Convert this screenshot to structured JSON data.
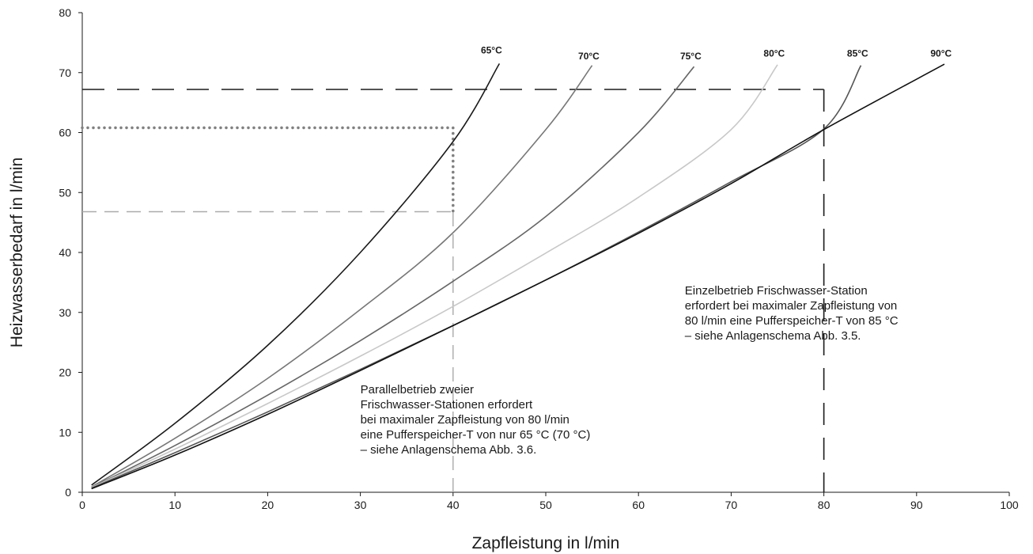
{
  "chart_data": {
    "type": "line",
    "title": "",
    "xlabel": "Zapfleistung in l/min",
    "ylabel": "Heizwasserbedarf in l/min",
    "xlim": [
      0,
      100
    ],
    "ylim": [
      0,
      80
    ],
    "xticks": [
      0,
      10,
      20,
      30,
      40,
      50,
      60,
      70,
      80,
      90,
      100
    ],
    "yticks": [
      0,
      10,
      20,
      30,
      40,
      50,
      60,
      70,
      80
    ],
    "grid": false,
    "legend": "none",
    "series": [
      {
        "name": "65°C",
        "color": "#1a1a1a",
        "points": [
          [
            1,
            1.2
          ],
          [
            10,
            11.5
          ],
          [
            20,
            24.5
          ],
          [
            30,
            40.0
          ],
          [
            40,
            58.5
          ],
          [
            45,
            71.5
          ]
        ]
      },
      {
        "name": "70°C",
        "color": "#777777",
        "points": [
          [
            1,
            0.9
          ],
          [
            10,
            9.0
          ],
          [
            20,
            19.0
          ],
          [
            30,
            30.5
          ],
          [
            40,
            43.3
          ],
          [
            50,
            60.5
          ],
          [
            55,
            71.2
          ]
        ]
      },
      {
        "name": "75°C",
        "color": "#666666",
        "points": [
          [
            1,
            0.8
          ],
          [
            10,
            7.8
          ],
          [
            20,
            16.2
          ],
          [
            30,
            25.3
          ],
          [
            40,
            35.2
          ],
          [
            50,
            46.0
          ],
          [
            60,
            60.0
          ],
          [
            66,
            71.0
          ]
        ]
      },
      {
        "name": "80°C",
        "color": "#c8c8c8",
        "points": [
          [
            1,
            0.8
          ],
          [
            10,
            7.2
          ],
          [
            20,
            14.8
          ],
          [
            30,
            22.7
          ],
          [
            40,
            31.0
          ],
          [
            50,
            39.9
          ],
          [
            60,
            49.2
          ],
          [
            70,
            60.5
          ],
          [
            75,
            71.3
          ]
        ]
      },
      {
        "name": "85°C",
        "color": "#555555",
        "points": [
          [
            1,
            0.7
          ],
          [
            10,
            6.6
          ],
          [
            20,
            13.4
          ],
          [
            30,
            20.5
          ],
          [
            40,
            27.8
          ],
          [
            50,
            35.4
          ],
          [
            60,
            43.4
          ],
          [
            70,
            51.8
          ],
          [
            80,
            60.6
          ],
          [
            84,
            71.2
          ]
        ]
      },
      {
        "name": "90°C",
        "color": "#111111",
        "points": [
          [
            1,
            0.6
          ],
          [
            10,
            6.2
          ],
          [
            20,
            13.0
          ],
          [
            30,
            20.3
          ],
          [
            40,
            27.8
          ],
          [
            50,
            35.4
          ],
          [
            60,
            43.2
          ],
          [
            70,
            51.5
          ],
          [
            80,
            60.5
          ],
          [
            93,
            71.4
          ]
        ]
      }
    ],
    "series_label_positions": {
      "65°C": [
        43,
        73.2
      ],
      "70°C": [
        53.5,
        72.2
      ],
      "75°C": [
        64.5,
        72.2
      ],
      "80°C": [
        73.5,
        72.7
      ],
      "85°C": [
        82.5,
        72.7
      ],
      "90°C": [
        91.5,
        72.7
      ]
    },
    "reference_lines": [
      {
        "style": "dotted",
        "color": "#808080",
        "points": [
          [
            0,
            60.8
          ],
          [
            40,
            60.8
          ],
          [
            40,
            46.8
          ]
        ]
      },
      {
        "style": "dashed-light",
        "color": "#aaaaaa",
        "points": [
          [
            40,
            0
          ],
          [
            40,
            46.8
          ]
        ]
      },
      {
        "style": "dashed-light",
        "color": "#aaaaaa",
        "points": [
          [
            0,
            46.8
          ],
          [
            40,
            46.8
          ]
        ]
      },
      {
        "style": "dashed-dark",
        "color": "#1a1a1a",
        "points": [
          [
            0,
            67.2
          ],
          [
            80,
            67.2
          ]
        ]
      },
      {
        "style": "dashed-dark",
        "color": "#1a1a1a",
        "points": [
          [
            80,
            67.2
          ],
          [
            80,
            0
          ]
        ]
      }
    ],
    "annotations": [
      {
        "anchor": [
          30,
          16.5
        ],
        "lines": [
          "Parallelbetrieb zweier",
          "Frischwasser-Stationen erfordert",
          "bei maximaler Zapfleistung von 80 l/min",
          "eine Pufferspeicher-T von nur 65 °C (70 °C)",
          "– siehe Anlagenschema Abb. 3.6."
        ]
      },
      {
        "anchor": [
          65,
          33.0
        ],
        "lines": [
          "Einzelbetrieb Frischwasser-Station",
          "erfordert bei maximaler Zapfleistung von",
          "80 l/min eine Pufferspeicher-T von 85 °C",
          "– siehe Anlagenschema Abb. 3.5."
        ]
      }
    ]
  }
}
